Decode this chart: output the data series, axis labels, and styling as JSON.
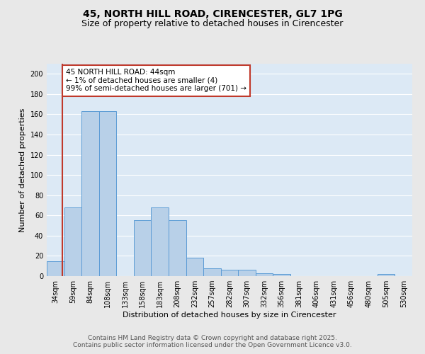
{
  "title": "45, NORTH HILL ROAD, CIRENCESTER, GL7 1PG",
  "subtitle": "Size of property relative to detached houses in Cirencester",
  "xlabel": "Distribution of detached houses by size in Cirencester",
  "ylabel": "Number of detached properties",
  "bar_labels": [
    "34sqm",
    "59sqm",
    "84sqm",
    "108sqm",
    "133sqm",
    "158sqm",
    "183sqm",
    "208sqm",
    "232sqm",
    "257sqm",
    "282sqm",
    "307sqm",
    "332sqm",
    "356sqm",
    "381sqm",
    "406sqm",
    "431sqm",
    "456sqm",
    "480sqm",
    "505sqm",
    "530sqm"
  ],
  "bar_heights": [
    15,
    68,
    163,
    163,
    0,
    55,
    68,
    55,
    18,
    8,
    6,
    6,
    3,
    2,
    0,
    0,
    0,
    0,
    0,
    2,
    0
  ],
  "bar_color": "#b8d0e8",
  "bar_edge_color": "#5b9bd5",
  "background_color": "#dce9f5",
  "grid_color": "#ffffff",
  "vline_color": "#c0392b",
  "vline_pos": 0.4,
  "annotation_text": "45 NORTH HILL ROAD: 44sqm\n← 1% of detached houses are smaller (4)\n99% of semi-detached houses are larger (701) →",
  "annotation_box_color": "#ffffff",
  "annotation_box_edge": "#c0392b",
  "ylim": [
    0,
    210
  ],
  "yticks": [
    0,
    20,
    40,
    60,
    80,
    100,
    120,
    140,
    160,
    180,
    200
  ],
  "footer_text": "Contains HM Land Registry data © Crown copyright and database right 2025.\nContains public sector information licensed under the Open Government Licence v3.0.",
  "title_fontsize": 10,
  "subtitle_fontsize": 9,
  "xlabel_fontsize": 8,
  "ylabel_fontsize": 8,
  "tick_fontsize": 7,
  "annotation_fontsize": 7.5,
  "footer_fontsize": 6.5
}
